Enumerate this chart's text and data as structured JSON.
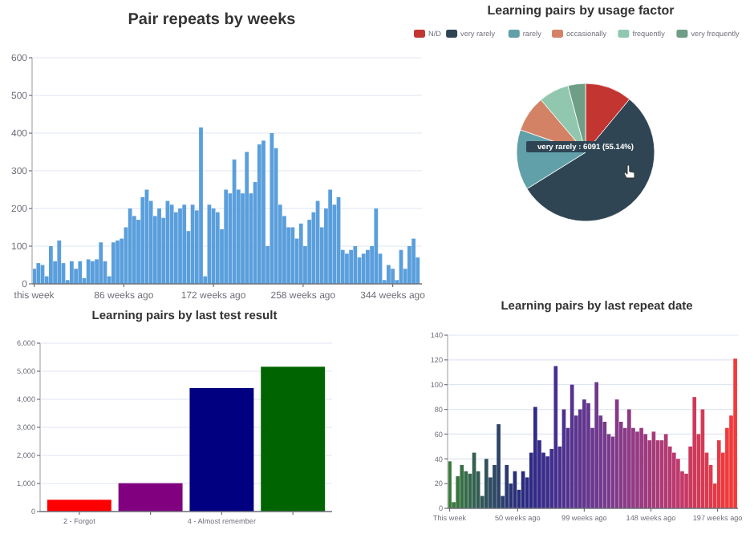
{
  "chart_data": [
    {
      "type": "bar",
      "title": "Pair repeats by weeks",
      "color": "#5a9fdc",
      "grid": "y",
      "xlim": [
        -2,
        372
      ],
      "ylim": [
        0,
        600
      ],
      "yticks": [
        0,
        100,
        200,
        300,
        400,
        500,
        600
      ],
      "xticks": [
        {
          "value": 0,
          "label": "this week"
        },
        {
          "value": 86,
          "label": "86 weeks ago"
        },
        {
          "value": 172,
          "label": "172 weeks ago"
        },
        {
          "value": 258,
          "label": "258 weeks ago"
        },
        {
          "value": 344,
          "label": "344 weeks ago"
        }
      ],
      "x": [
        0,
        4,
        8,
        12,
        16,
        20,
        24,
        28,
        32,
        36,
        40,
        44,
        48,
        52,
        56,
        60,
        64,
        68,
        72,
        76,
        80,
        84,
        88,
        92,
        96,
        100,
        104,
        108,
        112,
        116,
        120,
        124,
        128,
        132,
        136,
        140,
        144,
        148,
        152,
        156,
        160,
        164,
        168,
        172,
        176,
        180,
        184,
        188,
        192,
        196,
        200,
        204,
        208,
        212,
        216,
        220,
        224,
        228,
        232,
        236,
        240,
        244,
        248,
        252,
        256,
        260,
        264,
        268,
        272,
        276,
        280,
        284,
        288,
        292,
        296,
        300,
        304,
        308,
        312,
        316,
        320,
        324,
        328,
        332,
        336,
        340,
        344,
        348,
        352,
        356,
        360,
        364,
        368
      ],
      "values": [
        40,
        55,
        50,
        20,
        100,
        60,
        115,
        55,
        10,
        60,
        40,
        60,
        15,
        65,
        60,
        65,
        110,
        60,
        20,
        110,
        115,
        120,
        150,
        200,
        180,
        170,
        230,
        250,
        220,
        180,
        200,
        175,
        220,
        210,
        190,
        200,
        210,
        140,
        210,
        195,
        415,
        20,
        210,
        200,
        190,
        145,
        250,
        240,
        330,
        250,
        240,
        350,
        240,
        270,
        370,
        380,
        100,
        400,
        360,
        210,
        180,
        150,
        150,
        120,
        160,
        100,
        170,
        190,
        220,
        150,
        200,
        250,
        210,
        230,
        90,
        80,
        90,
        100,
        70,
        80,
        90,
        100,
        200,
        80,
        10,
        50,
        40,
        10,
        90,
        40,
        100,
        120,
        70
      ]
    },
    {
      "type": "pie",
      "title": "Learning pairs by usage factor",
      "legend": "top",
      "categories": [
        "N/D",
        "very rarely",
        "rarely",
        "occasionally",
        "frequently",
        "very frequently"
      ],
      "values": [
        11,
        55.14,
        14.16,
        8.5,
        7.1,
        4.1
      ],
      "colors": [
        "#c23531",
        "#2f4554",
        "#61a0a8",
        "#d48265",
        "#91c7ae",
        "#6e9e85"
      ],
      "annotations": [
        "very rarely : 6091 (55.14%)"
      ]
    },
    {
      "type": "bar",
      "title": "Learning pairs by last test result",
      "grid": "y",
      "categories": [
        "2 - Forgot",
        null,
        "4 - Almost remember",
        null
      ],
      "values": [
        420,
        1010,
        4400,
        5160
      ],
      "colors": [
        "#ff0000",
        "#800080",
        "#000080",
        "#006400"
      ],
      "ylim": [
        0,
        6000
      ],
      "yticks": [
        0,
        {
          "value": 1000,
          "label": "1,000"
        },
        {
          "value": 2000,
          "label": "2,000"
        },
        {
          "value": 3000,
          "label": "3,000"
        },
        {
          "value": 4000,
          "label": "4,000"
        },
        {
          "value": 5000,
          "label": "5,000"
        },
        {
          "value": 6000,
          "label": "6,000"
        }
      ]
    },
    {
      "type": "bar",
      "title": "Learning pairs by last repeat date",
      "grid": "y",
      "xlim": [
        -1.5,
        212
      ],
      "ylim": [
        0,
        140
      ],
      "yticks": [
        0,
        20,
        40,
        60,
        80,
        100,
        120,
        140
      ],
      "xticks": [
        {
          "value": 0,
          "label": "This week"
        },
        {
          "value": 50,
          "label": "50 weeks ago"
        },
        {
          "value": 99,
          "label": "99 weeks ago"
        },
        {
          "value": 148,
          "label": "148 weeks ago"
        },
        {
          "value": 197,
          "label": "197 weeks ago"
        }
      ],
      "x": [
        0,
        3,
        6,
        9,
        12,
        15,
        18,
        21,
        24,
        27,
        30,
        33,
        36,
        39,
        42,
        45,
        48,
        51,
        54,
        57,
        60,
        63,
        66,
        69,
        72,
        75,
        78,
        81,
        84,
        87,
        90,
        93,
        96,
        99,
        102,
        105,
        108,
        111,
        114,
        117,
        120,
        123,
        126,
        129,
        132,
        135,
        138,
        141,
        144,
        147,
        150,
        153,
        156,
        159,
        162,
        165,
        168,
        171,
        174,
        177,
        180,
        183,
        186,
        189,
        192,
        195,
        198,
        201,
        204,
        207,
        210
      ],
      "values": [
        38,
        5,
        26,
        35,
        30,
        28,
        45,
        30,
        10,
        40,
        25,
        35,
        68,
        10,
        35,
        20,
        30,
        15,
        30,
        25,
        45,
        82,
        55,
        45,
        42,
        48,
        115,
        50,
        80,
        65,
        100,
        75,
        80,
        88,
        85,
        65,
        102,
        75,
        70,
        60,
        58,
        88,
        70,
        65,
        80,
        65,
        62,
        65,
        60,
        55,
        62,
        55,
        55,
        60,
        50,
        45,
        40,
        30,
        28,
        50,
        90,
        60,
        80,
        45,
        35,
        20,
        55,
        45,
        65,
        75,
        121
      ],
      "colors": [
        "#3a7a3a",
        "#3a7a3c",
        "#387540",
        "#377044",
        "#356b48",
        "#34664c",
        "#336150",
        "#325c54",
        "#315758",
        "#30525c",
        "#2f4d60",
        "#2e4864",
        "#2d4368",
        "#2c3e6c",
        "#2b3970",
        "#2a3474",
        "#2a3078",
        "#2a2c7c",
        "#2a2a80",
        "#2c2a82",
        "#2e2a84",
        "#322a86",
        "#362b88",
        "#3a2c8a",
        "#3e2d8c",
        "#422e8e",
        "#462f8e",
        "#4a308e",
        "#4e318e",
        "#52328e",
        "#56338e",
        "#5a348e",
        "#5e358e",
        "#62368e",
        "#66378e",
        "#6a388e",
        "#6e398e",
        "#723a8d",
        "#763a8c",
        "#7a3a8b",
        "#7e3a8a",
        "#823a89",
        "#863a88",
        "#8a3a87",
        "#8e3a86",
        "#923a84",
        "#963a82",
        "#9a3a80",
        "#9e3a7e",
        "#a23a7c",
        "#a63a7a",
        "#aa3a78",
        "#ae3a76",
        "#b23a74",
        "#b63a72",
        "#ba3a70",
        "#be3a6c",
        "#c23a68",
        "#c63a64",
        "#ca3a60",
        "#ce3a5c",
        "#d23a58",
        "#d63a54",
        "#da3a50",
        "#de3a4c",
        "#e23a48",
        "#e63a44",
        "#ea3a40",
        "#ee3a3c",
        "#f03a3a",
        "#f23a3a"
      ]
    }
  ]
}
